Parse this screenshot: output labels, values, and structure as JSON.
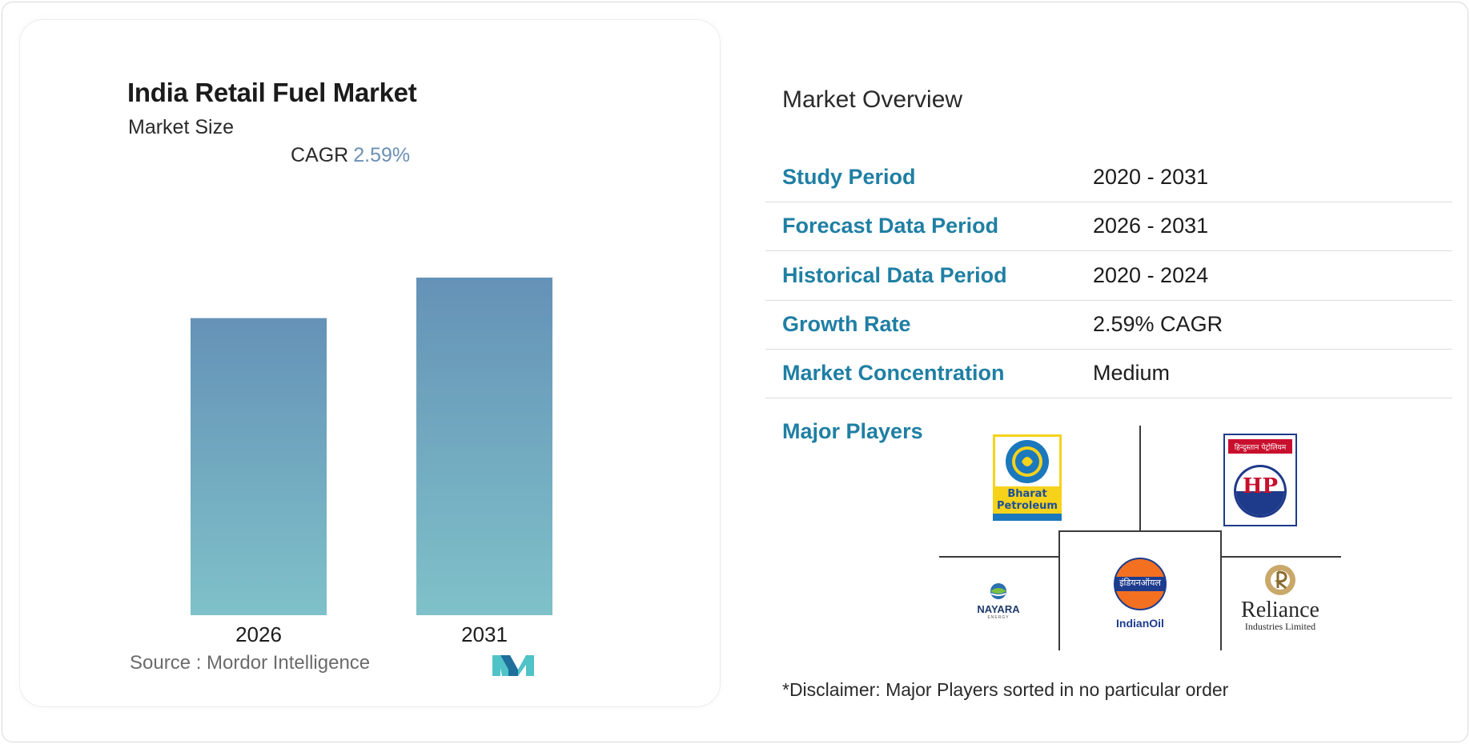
{
  "chart_data": {
    "type": "bar",
    "title": "India Retail Fuel Market",
    "subtitle": "Market Size",
    "cagr_label": "CAGR",
    "cagr_value": "2.59%",
    "categories": [
      "2026",
      "2031"
    ],
    "values": [
      88,
      100
    ],
    "ylim": [
      0,
      100
    ],
    "grid": false,
    "colors": {
      "bar_top": "#6592b7",
      "bar_bottom": "#7fc1c9"
    }
  },
  "source": "Source :  Mordor Intelligence",
  "overview": {
    "title": "Market Overview",
    "rows": [
      {
        "label": "Study Period",
        "value": "2020 - 2031"
      },
      {
        "label": "Forecast Data Period",
        "value": "2026 - 2031"
      },
      {
        "label": "Historical Data Period",
        "value": "2020 - 2024"
      },
      {
        "label": "Growth Rate",
        "value": "2.59% CAGR"
      },
      {
        "label": "Market Concentration",
        "value": "Medium"
      }
    ],
    "major_players_label": "Major Players",
    "players": [
      {
        "name": "Bharat Petroleum",
        "line1": "Bharat",
        "line2": "Petroleum",
        "icon": "bharat-petroleum-logo"
      },
      {
        "name": "HP",
        "devanagari": "हिन्दुस्तान पेट्रोलियम",
        "icon": "hp-logo"
      },
      {
        "name": "NAYARA",
        "sub": "ENERGY",
        "icon": "nayara-logo"
      },
      {
        "name": "IndianOil",
        "devanagari": "इंडियनऑयल",
        "icon": "indianoil-logo"
      },
      {
        "name": "Reliance",
        "sub": "Industries Limited",
        "icon": "reliance-logo"
      }
    ],
    "disclaimer": "*Disclaimer: Major Players sorted in no particular order"
  },
  "colors": {
    "accent": "#1f7fa3",
    "cagr": "#6a90b4",
    "mi_logo_dark": "#1e6f9a",
    "mi_logo_light": "#4fc3c8"
  }
}
